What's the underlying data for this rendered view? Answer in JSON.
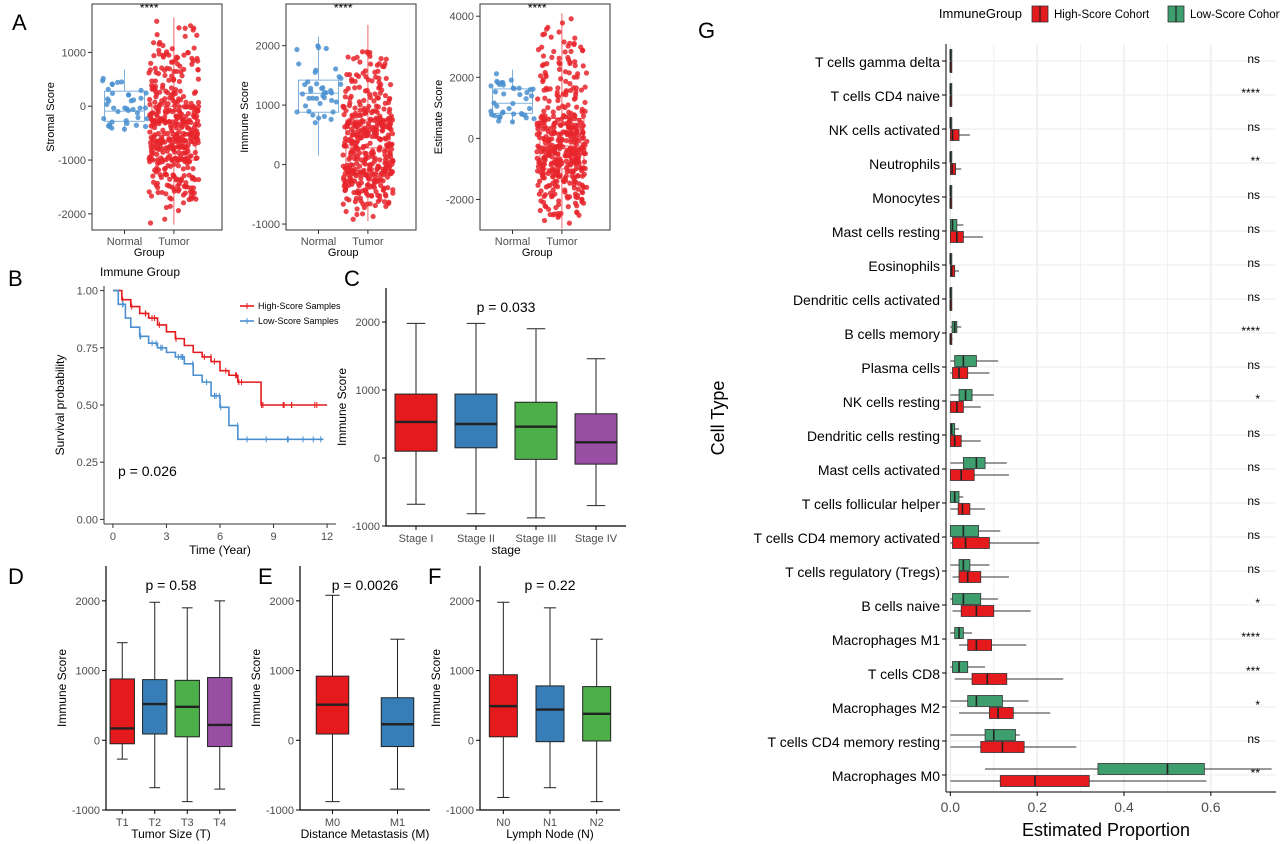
{
  "colors": {
    "normal": "#4a90d0",
    "tumor": "#e8252b",
    "high": "#e41a1c",
    "low": "#3f9e6e",
    "stage": [
      "#e41a1c",
      "#377eb8",
      "#4daf4a",
      "#984ea3"
    ]
  },
  "panel_labels": [
    "A",
    "B",
    "C",
    "D",
    "E",
    "F",
    "G"
  ],
  "chart_data": [
    {
      "id": "A1",
      "type": "scatter",
      "categories": [
        "Normal",
        "Tumor"
      ],
      "xlabel": "Group",
      "ylabel": "Stromal Score",
      "yticks": [
        -2000,
        -1000,
        0,
        1000
      ],
      "ylim": [
        -2300,
        1900
      ],
      "significance": "****",
      "series": [
        {
          "values": {
            "min": -480,
            "q1": -280,
            "median": -90,
            "q3": 280,
            "max": 680
          },
          "n": 40
        },
        {
          "values": {
            "min": -2200,
            "q1": -1000,
            "median": -550,
            "q3": 0,
            "max": 1650
          },
          "n": 420
        }
      ]
    },
    {
      "id": "A2",
      "type": "scatter",
      "categories": [
        "Normal",
        "Tumor"
      ],
      "xlabel": "Group",
      "ylabel": "Immune Score",
      "yticks": [
        -1000,
        0,
        1000,
        2000
      ],
      "ylim": [
        -1100,
        2700
      ],
      "significance": "****",
      "series": [
        {
          "values": {
            "min": 150,
            "q1": 880,
            "median": 1200,
            "q3": 1420,
            "max": 2150
          },
          "n": 40
        },
        {
          "values": {
            "min": -950,
            "q1": -150,
            "median": 280,
            "q3": 750,
            "max": 2350
          },
          "n": 420
        }
      ]
    },
    {
      "id": "A3",
      "type": "scatter",
      "categories": [
        "Normal",
        "Tumor"
      ],
      "xlabel": "Group",
      "ylabel": "Estimate Score",
      "yticks": [
        -2000,
        0,
        2000,
        4000
      ],
      "ylim": [
        -3000,
        4400
      ],
      "significance": "****",
      "series": [
        {
          "values": {
            "min": 500,
            "q1": 820,
            "median": 1150,
            "q3": 1620,
            "max": 2250
          },
          "n": 40
        },
        {
          "values": {
            "min": -2950,
            "q1": -1000,
            "median": -250,
            "q3": 650,
            "max": 4100
          },
          "n": 420
        }
      ]
    },
    {
      "id": "B",
      "type": "line",
      "title": "Immune Group",
      "xlabel": "Time (Year)",
      "ylabel": "Survival probability",
      "xticks": [
        0,
        3,
        6,
        9,
        12
      ],
      "yticks": [
        0,
        0.25,
        0.5,
        0.75,
        1.0
      ],
      "xlim": [
        -0.5,
        12.5
      ],
      "ylim": [
        -0.02,
        1.02
      ],
      "annotation": "p = 0.026",
      "series": [
        {
          "name": "High-Score Samples",
          "x": [
            0,
            0.5,
            1,
            1.5,
            2,
            2.5,
            3,
            3.5,
            4,
            4.5,
            5,
            5.5,
            6,
            6.5,
            7,
            8.3,
            9,
            10,
            11,
            12
          ],
          "y": [
            1.0,
            0.96,
            0.93,
            0.9,
            0.88,
            0.85,
            0.82,
            0.79,
            0.76,
            0.73,
            0.71,
            0.69,
            0.65,
            0.63,
            0.6,
            0.5,
            0.5,
            0.5,
            0.5,
            0.5
          ]
        },
        {
          "name": "Low-Score Samples",
          "x": [
            0,
            0.3,
            0.7,
            1,
            1.5,
            2,
            2.5,
            3,
            3.5,
            4,
            4.5,
            5,
            5.5,
            6,
            6.5,
            7,
            8,
            9,
            10,
            11,
            11.8
          ],
          "y": [
            1.0,
            0.94,
            0.88,
            0.84,
            0.8,
            0.77,
            0.75,
            0.73,
            0.71,
            0.68,
            0.63,
            0.6,
            0.54,
            0.49,
            0.41,
            0.35,
            0.35,
            0.35,
            0.35,
            0.35,
            0.35
          ]
        }
      ]
    },
    {
      "id": "C",
      "type": "bar",
      "categories": [
        "Stage I",
        "Stage II",
        "Stage III",
        "Stage IV"
      ],
      "xlabel": "stage",
      "ylabel": "Immune Score",
      "yticks": [
        -1000,
        0,
        1000,
        2000
      ],
      "ylim": [
        -1000,
        2500
      ],
      "annotation": "p = 0.033",
      "values": [
        {
          "min": -680,
          "q1": 100,
          "median": 530,
          "q3": 940,
          "max": 1980
        },
        {
          "min": -820,
          "q1": 150,
          "median": 500,
          "q3": 940,
          "max": 1980
        },
        {
          "min": -880,
          "q1": -20,
          "median": 460,
          "q3": 820,
          "max": 1900
        },
        {
          "min": -700,
          "q1": -90,
          "median": 230,
          "q3": 650,
          "max": 1460
        }
      ]
    },
    {
      "id": "D",
      "type": "bar",
      "categories": [
        "T1",
        "T2",
        "T3",
        "T4"
      ],
      "xlabel": "Tumor Size (T)",
      "ylabel": "Immune Score",
      "yticks": [
        -1000,
        0,
        1000,
        2000
      ],
      "ylim": [
        -1000,
        2500
      ],
      "annotation": "p = 0.58",
      "values": [
        {
          "min": -270,
          "q1": -50,
          "median": 170,
          "q3": 880,
          "max": 1400
        },
        {
          "min": -680,
          "q1": 90,
          "median": 520,
          "q3": 870,
          "max": 1980
        },
        {
          "min": -880,
          "q1": 50,
          "median": 480,
          "q3": 860,
          "max": 1900
        },
        {
          "min": -700,
          "q1": -90,
          "median": 220,
          "q3": 900,
          "max": 2000
        }
      ]
    },
    {
      "id": "E",
      "type": "bar",
      "categories": [
        "M0",
        "M1"
      ],
      "xlabel": "Distance Metastasis (M)",
      "ylabel": "Immune Score",
      "yticks": [
        -1000,
        0,
        1000,
        2000
      ],
      "ylim": [
        -1000,
        2500
      ],
      "annotation": "p = 0.0026",
      "values": [
        {
          "min": -880,
          "q1": 90,
          "median": 510,
          "q3": 920,
          "max": 2080
        },
        {
          "min": -700,
          "q1": -90,
          "median": 230,
          "q3": 610,
          "max": 1450
        }
      ]
    },
    {
      "id": "F",
      "type": "bar",
      "categories": [
        "N0",
        "N1",
        "N2"
      ],
      "xlabel": "Lymph Node (N)",
      "ylabel": "Immune Score",
      "yticks": [
        -1000,
        0,
        1000,
        2000
      ],
      "ylim": [
        -1000,
        2500
      ],
      "annotation": "p = 0.22",
      "values": [
        {
          "min": -820,
          "q1": 50,
          "median": 490,
          "q3": 940,
          "max": 1980
        },
        {
          "min": -680,
          "q1": -20,
          "median": 440,
          "q3": 780,
          "max": 1900
        },
        {
          "min": -880,
          "q1": -10,
          "median": 380,
          "q3": 770,
          "max": 1450
        }
      ]
    },
    {
      "id": "G",
      "type": "bar",
      "xlabel": "Estimated Proportion",
      "ylabel": "Cell Type",
      "xticks": [
        0,
        0.2,
        0.4,
        0.6
      ],
      "xlim": [
        -0.01,
        0.75
      ],
      "legend": {
        "title": "ImmuneGroup",
        "entries": [
          "High-Score Cohort",
          "Low-Score Cohort"
        ],
        "placement": "top"
      },
      "categories": [
        "T cells gamma delta",
        "T cells CD4 naive",
        "NK cells activated",
        "Neutrophils",
        "Monocytes",
        "Mast cells resting",
        "Eosinophils",
        "Dendritic cells activated",
        "B cells memory",
        "Plasma cells",
        "NK cells resting",
        "Dendritic cells resting",
        "Mast cells activated",
        "T cells follicular helper",
        "T cells CD4 memory activated",
        "T cells regulatory (Tregs)",
        "B cells naive",
        "Macrophages M1",
        "T cells CD8",
        "Macrophages M2",
        "T cells CD4 memory resting",
        "Macrophages M0"
      ],
      "significance": [
        "ns",
        "****",
        "ns",
        "**",
        "ns",
        "ns",
        "ns",
        "ns",
        "****",
        "ns",
        "*",
        "ns",
        "ns",
        "ns",
        "ns",
        "ns",
        "*",
        "****",
        "***",
        "*",
        "ns",
        "**"
      ],
      "series": [
        {
          "name": "High-Score Cohort",
          "values": [
            {
              "min": 0,
              "q1": 0,
              "median": 0,
              "q3": 0.001,
              "max": 0.002
            },
            {
              "min": 0,
              "q1": 0,
              "median": 0,
              "q3": 0.001,
              "max": 0.002
            },
            {
              "min": 0,
              "q1": 0,
              "median": 0.005,
              "q3": 0.02,
              "max": 0.045
            },
            {
              "min": 0,
              "q1": 0,
              "median": 0.004,
              "q3": 0.012,
              "max": 0.025
            },
            {
              "min": 0,
              "q1": 0,
              "median": 0,
              "q3": 0.001,
              "max": 0.002
            },
            {
              "min": 0,
              "q1": 0,
              "median": 0.015,
              "q3": 0.03,
              "max": 0.075
            },
            {
              "min": 0,
              "q1": 0,
              "median": 0.003,
              "q3": 0.01,
              "max": 0.02
            },
            {
              "min": 0,
              "q1": 0,
              "median": 0,
              "q3": 0.001,
              "max": 0.003
            },
            {
              "min": 0,
              "q1": 0,
              "median": 0,
              "q3": 0.002,
              "max": 0.005
            },
            {
              "min": 0,
              "q1": 0.005,
              "median": 0.02,
              "q3": 0.04,
              "max": 0.09
            },
            {
              "min": 0,
              "q1": 0,
              "median": 0.015,
              "q3": 0.03,
              "max": 0.07
            },
            {
              "min": 0,
              "q1": 0,
              "median": 0.01,
              "q3": 0.025,
              "max": 0.07
            },
            {
              "min": 0,
              "q1": 0,
              "median": 0.025,
              "q3": 0.055,
              "max": 0.135
            },
            {
              "min": 0,
              "q1": 0.018,
              "median": 0.028,
              "q3": 0.045,
              "max": 0.08
            },
            {
              "min": 0,
              "q1": 0.005,
              "median": 0.035,
              "q3": 0.09,
              "max": 0.205
            },
            {
              "min": 0.005,
              "q1": 0.02,
              "median": 0.04,
              "q3": 0.07,
              "max": 0.135
            },
            {
              "min": 0.005,
              "q1": 0.025,
              "median": 0.06,
              "q3": 0.1,
              "max": 0.185
            },
            {
              "min": 0.02,
              "q1": 0.04,
              "median": 0.06,
              "q3": 0.095,
              "max": 0.175
            },
            {
              "min": 0.01,
              "q1": 0.05,
              "median": 0.085,
              "q3": 0.13,
              "max": 0.26
            },
            {
              "min": 0.02,
              "q1": 0.09,
              "median": 0.11,
              "q3": 0.145,
              "max": 0.23
            },
            {
              "min": 0,
              "q1": 0.07,
              "median": 0.12,
              "q3": 0.17,
              "max": 0.29
            },
            {
              "min": 0,
              "q1": 0.115,
              "median": 0.195,
              "q3": 0.32,
              "max": 0.59
            }
          ]
        },
        {
          "name": "Low-Score Cohort",
          "values": [
            {
              "min": 0,
              "q1": 0,
              "median": 0,
              "q3": 0.001,
              "max": 0.002
            },
            {
              "min": 0,
              "q1": 0,
              "median": 0,
              "q3": 0.001,
              "max": 0.002
            },
            {
              "min": 0,
              "q1": 0,
              "median": 0,
              "q3": 0.001,
              "max": 0.002
            },
            {
              "min": 0,
              "q1": 0,
              "median": 0,
              "q3": 0.001,
              "max": 0.002
            },
            {
              "min": 0,
              "q1": 0,
              "median": 0,
              "q3": 0.001,
              "max": 0.002
            },
            {
              "min": 0,
              "q1": 0,
              "median": 0.005,
              "q3": 0.015,
              "max": 0.03
            },
            {
              "min": 0,
              "q1": 0,
              "median": 0,
              "q3": 0.001,
              "max": 0.002
            },
            {
              "min": 0,
              "q1": 0,
              "median": 0,
              "q3": 0.001,
              "max": 0.002
            },
            {
              "min": 0,
              "q1": 0.004,
              "median": 0.01,
              "q3": 0.015,
              "max": 0.025
            },
            {
              "min": 0,
              "q1": 0.01,
              "median": 0.03,
              "q3": 0.06,
              "max": 0.11
            },
            {
              "min": 0,
              "q1": 0.02,
              "median": 0.035,
              "q3": 0.05,
              "max": 0.1
            },
            {
              "min": 0,
              "q1": 0,
              "median": 0.003,
              "q3": 0.01,
              "max": 0.02
            },
            {
              "min": 0,
              "q1": 0.03,
              "median": 0.06,
              "q3": 0.08,
              "max": 0.13
            },
            {
              "min": 0,
              "q1": 0,
              "median": 0.01,
              "q3": 0.02,
              "max": 0.03
            },
            {
              "min": 0,
              "q1": 0,
              "median": 0.03,
              "q3": 0.065,
              "max": 0.115
            },
            {
              "min": 0,
              "q1": 0.02,
              "median": 0.03,
              "q3": 0.045,
              "max": 0.09
            },
            {
              "min": 0,
              "q1": 0.005,
              "median": 0.03,
              "q3": 0.07,
              "max": 0.11
            },
            {
              "min": 0,
              "q1": 0.01,
              "median": 0.02,
              "q3": 0.03,
              "max": 0.05
            },
            {
              "min": 0,
              "q1": 0.005,
              "median": 0.02,
              "q3": 0.04,
              "max": 0.08
            },
            {
              "min": 0,
              "q1": 0.04,
              "median": 0.06,
              "q3": 0.12,
              "max": 0.18
            },
            {
              "min": 0,
              "q1": 0.08,
              "median": 0.1,
              "q3": 0.15,
              "max": 0.16
            },
            {
              "min": 0.08,
              "q1": 0.34,
              "median": 0.5,
              "q3": 0.585,
              "max": 0.74
            }
          ]
        }
      ]
    }
  ]
}
